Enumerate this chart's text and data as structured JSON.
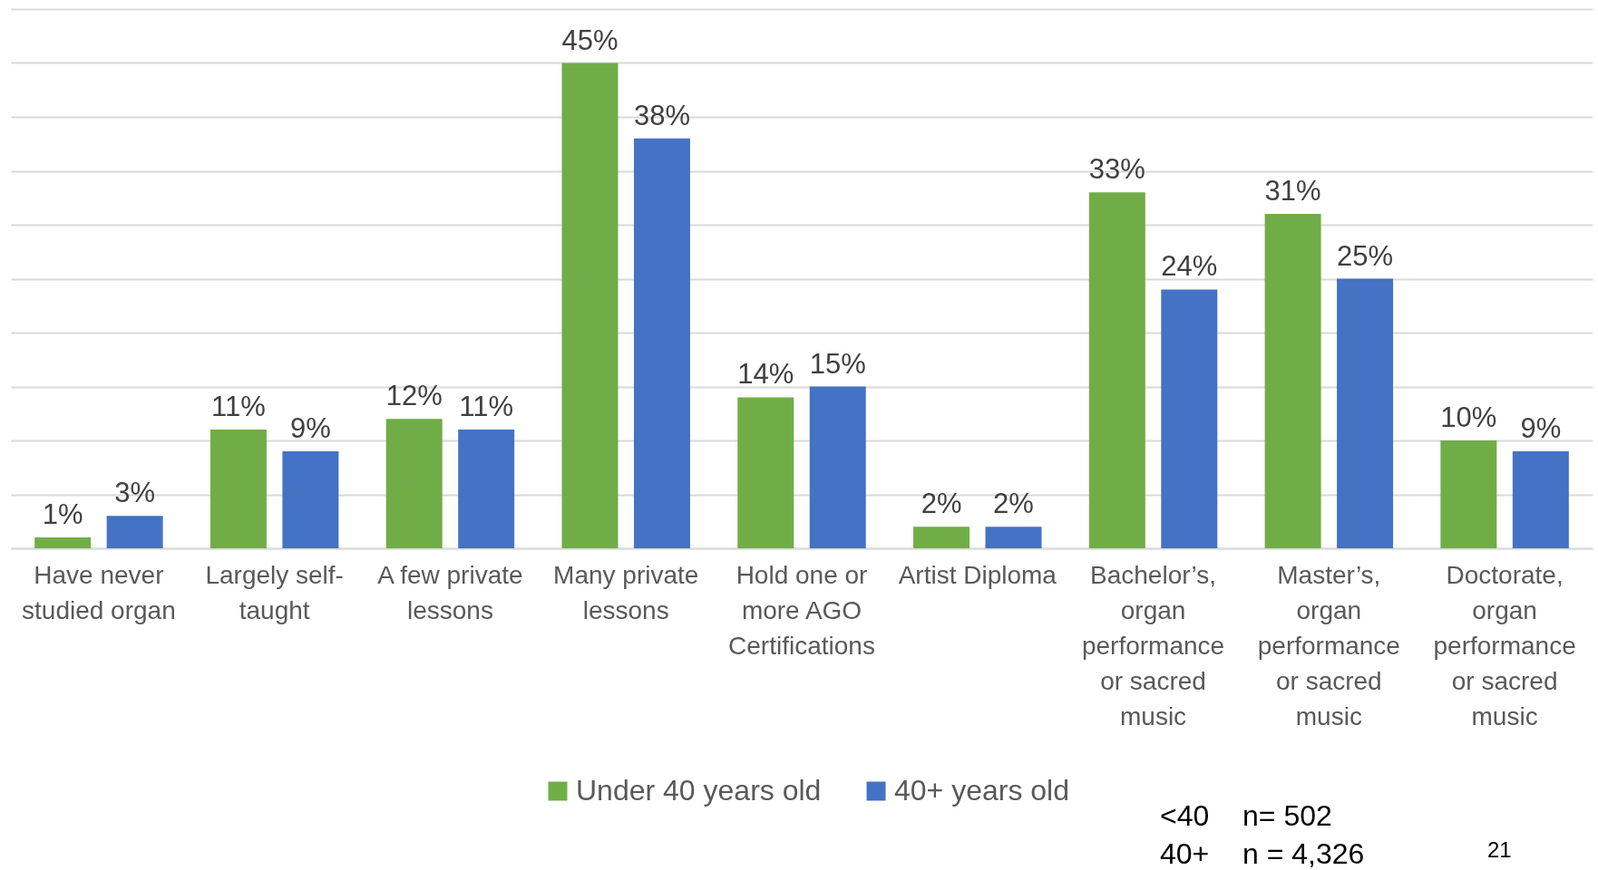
{
  "chart_data": {
    "type": "bar",
    "categories": [
      "Have never studied organ",
      "Largely self-taught",
      "A few private lessons",
      "Many private lessons",
      "Hold one or more AGO Certifications",
      "Artist Diploma",
      "Bachelor’s, organ performance or sacred music",
      "Master’s, organ performance or sacred music",
      "Doctorate, organ performance or sacred music"
    ],
    "series": [
      {
        "name": "Under 40 years old",
        "color": "#70ad47",
        "values": [
          1,
          11,
          12,
          45,
          14,
          2,
          33,
          31,
          10
        ],
        "value_labels": [
          "1%",
          "11%",
          "12%",
          "45%",
          "14%",
          "2%",
          "33%",
          "31%",
          "10%"
        ]
      },
      {
        "name": "40+ years old",
        "color": "#4472c4",
        "values": [
          3,
          9,
          11,
          38,
          15,
          2,
          24,
          25,
          9
        ],
        "value_labels": [
          "3%",
          "9%",
          "11%",
          "38%",
          "15%",
          "2%",
          "24%",
          "25%",
          "9%"
        ]
      }
    ],
    "ylim": [
      0,
      50
    ],
    "yticks": [
      {
        "value": 0,
        "label": null
      },
      {
        "value": 5,
        "label": null
      },
      {
        "value": 10,
        "label": null
      },
      {
        "value": 15,
        "label": null
      },
      {
        "value": 20,
        "label": null
      },
      {
        "value": 25,
        "label": null
      },
      {
        "value": 30,
        "label": null
      },
      {
        "value": 35,
        "label": null
      },
      {
        "value": 40,
        "label": null
      },
      {
        "value": 45,
        "label": null
      },
      {
        "value": 50,
        "label": null
      }
    ],
    "grid": "y",
    "tick_labels": "x",
    "legend": "bottom",
    "annotations": [
      "<40",
      "n= 502",
      "40+",
      "n = 4,326",
      "21"
    ]
  }
}
